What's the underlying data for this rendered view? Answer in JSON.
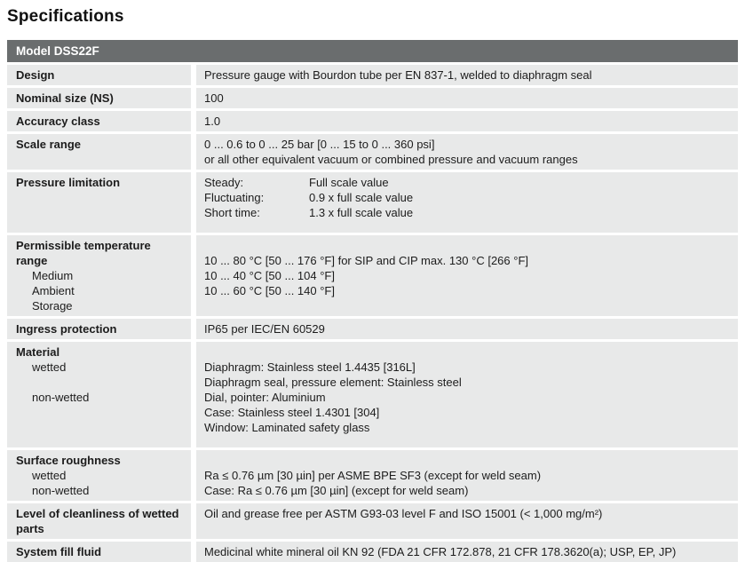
{
  "page_title": "Specifications",
  "table": {
    "header": "Model DSS22F",
    "colors": {
      "header_bg": "#6a6d6e",
      "header_text": "#ffffff",
      "row_bg": "#e8e9e9",
      "body_text": "#1c1c1c"
    },
    "rows": [
      {
        "label": "Design",
        "value": "Pressure gauge with Bourdon tube per EN 837-1, welded to diaphragm seal"
      },
      {
        "label": "Nominal size (NS)",
        "value": "100"
      },
      {
        "label": "Accuracy class",
        "value": "1.0"
      },
      {
        "label": "Scale range",
        "value_line1": "0 ... 0.6 to 0 ... 25 bar [0 ... 15 to 0 ... 360 psi]",
        "value_line2": "or all other equivalent vacuum or combined pressure and vacuum ranges"
      },
      {
        "label": "Pressure limitation",
        "pairs": [
          {
            "name": "Steady:",
            "value": "Full scale value"
          },
          {
            "name": "Fluctuating:",
            "value": "0.9 x full scale value"
          },
          {
            "name": "Short time:",
            "value": "1.3 x full scale value"
          }
        ]
      },
      {
        "label": "Permissible temperature range",
        "sub_labels": [
          "Medium",
          "Ambient",
          "Storage"
        ],
        "values": [
          "10 ... 80 °C [50 ... 176 °F] for SIP and CIP max. 130 °C [266 °F]",
          "10 ... 40 °C [50 ... 104 °F]",
          "10 ... 60 °C [50 ... 140 °F]"
        ]
      },
      {
        "label": "Ingress protection",
        "value": "IP65 per IEC/EN 60529"
      },
      {
        "label": "Material",
        "sub_labels": [
          "wetted",
          "non-wetted"
        ],
        "values": [
          "Diaphragm: Stainless steel 1.4435 [316L]",
          "Diaphragm seal, pressure element: Stainless steel",
          "Dial, pointer: Aluminium",
          "Case: Stainless steel 1.4301 [304]",
          "Window: Laminated safety glass"
        ]
      },
      {
        "label": "Surface roughness",
        "sub_labels": [
          "wetted",
          "non-wetted"
        ],
        "values": [
          "Ra ≤ 0.76 µm [30 µin] per ASME BPE SF3 (except for weld seam)",
          "Case: Ra ≤ 0.76 µm [30 µin] (except for weld seam)"
        ]
      },
      {
        "label": "Level of cleanliness of wetted parts",
        "value": "Oil and grease free per ASTM G93-03 level F and ISO 15001 (< 1,000 mg/m²)"
      },
      {
        "label": "System fill fluid",
        "value": "Medicinal white mineral oil KN 92 (FDA 21 CFR 172.878, 21 CFR 178.3620(a); USP, EP, JP)"
      }
    ]
  }
}
